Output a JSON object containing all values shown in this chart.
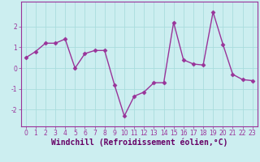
{
  "x": [
    0,
    1,
    2,
    3,
    4,
    5,
    6,
    7,
    8,
    9,
    10,
    11,
    12,
    13,
    14,
    15,
    16,
    17,
    18,
    19,
    20,
    21,
    22,
    23
  ],
  "y": [
    0.5,
    0.8,
    1.2,
    1.2,
    1.4,
    0.0,
    0.7,
    0.85,
    0.85,
    -0.8,
    -2.3,
    -1.35,
    -1.15,
    -0.7,
    -0.7,
    2.2,
    0.4,
    0.2,
    0.15,
    2.7,
    1.15,
    -0.3,
    -0.55,
    -0.6
  ],
  "line_color": "#993399",
  "marker": "D",
  "marker_size": 2.5,
  "linewidth": 1.0,
  "xlabel": "Windchill (Refroidissement éolien,°C)",
  "xlabel_fontsize": 7.0,
  "xlabel_color": "#660066",
  "background_color": "#cceef0",
  "grid_color": "#aadddd",
  "tick_color": "#993399",
  "xlim": [
    -0.5,
    23.5
  ],
  "ylim": [
    -2.8,
    3.2
  ],
  "yticks": [
    -2,
    -1,
    0,
    1,
    2
  ],
  "xticks": [
    0,
    1,
    2,
    3,
    4,
    5,
    6,
    7,
    8,
    9,
    10,
    11,
    12,
    13,
    14,
    15,
    16,
    17,
    18,
    19,
    20,
    21,
    22,
    23
  ],
  "tick_fontsize": 5.5,
  "spine_color": "#993399"
}
